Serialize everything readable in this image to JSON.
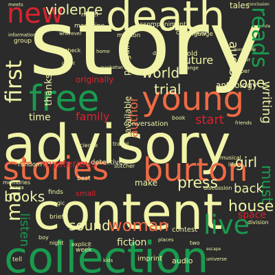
{
  "palette": {
    "background": "#2b2b2b",
    "cream": "#f1f4a8",
    "green": "#1a9a4f",
    "red": "#d9232e",
    "orange": "#ef6a45"
  },
  "words": {
    "story": "story",
    "advisory": "advisory",
    "content": "content",
    "collection": "collection",
    "death": "death",
    "free": "free",
    "young": "young",
    "stories": "stories",
    "burton": "burton",
    "new": "new",
    "reads": "reads",
    "first": "first",
    "violence": "violence",
    "man": "man",
    "woman": "woman",
    "live": "live",
    "books": "books",
    "house": "house",
    "sound": "sound",
    "listen": "listen",
    "must": "must",
    "world": "world",
    "family": "family",
    "author": "author",
    "trial": "trial",
    "audible": "audible",
    "writing": "writing",
    "press": "press",
    "back": "back",
    "start": "start",
    "girl": "girl",
    "one": "one",
    "future": "future",
    "fiction": "fiction",
    "mysterious": "mysterious",
    "thanks": "thanks",
    "time": "time",
    "space": "space",
    "tales": "tales",
    "anthology": "anthology",
    "available": "available",
    "penguin": "penguin",
    "originally": "originally",
    "make": "make",
    "detectives": "detectives",
    "audio": "audio",
    "journey": "journey",
    "contest": "contest",
    "imprint": "imprint",
    "conversation": "conversation",
    "mission": "mission",
    "magazine": "magazine",
    "accompaniment": "accompaniment",
    "novel": "novel",
    "childhood": "childhood",
    "language": "language",
    "dark": "dark",
    "small": "small",
    "random": "random",
    "memories": "memories",
    "finds": "finds",
    "best": "best",
    "magic": "magic",
    "week": "week",
    "tell": "tell",
    "brief": "brief",
    "division": "division",
    "night": "night",
    "explicit": "explicit",
    "travel": "travel",
    "science": "science",
    "discussion": "discussion",
    "musical": "musical",
    "life": "life",
    "old": "old",
    "strange": "strange",
    "home": "home",
    "group": "group",
    "meets": "meets",
    "information": "information",
    "wherever": "wherever",
    "check": "check",
    "planet": "planet",
    "book": "book",
    "paper": "paper",
    "two": "two",
    "friends": "friends",
    "boy": "boy",
    "menagerie": "menagerie",
    "conclusion": "conclusion",
    "manhattan": "manhattan",
    "stitcher": "stitcher",
    "saga": "saga",
    "places": "places",
    "kids": "kids",
    "universe": "universe",
    "escape": "escape",
    "series": "series",
    "tour": "tour",
    "role": "role"
  }
}
